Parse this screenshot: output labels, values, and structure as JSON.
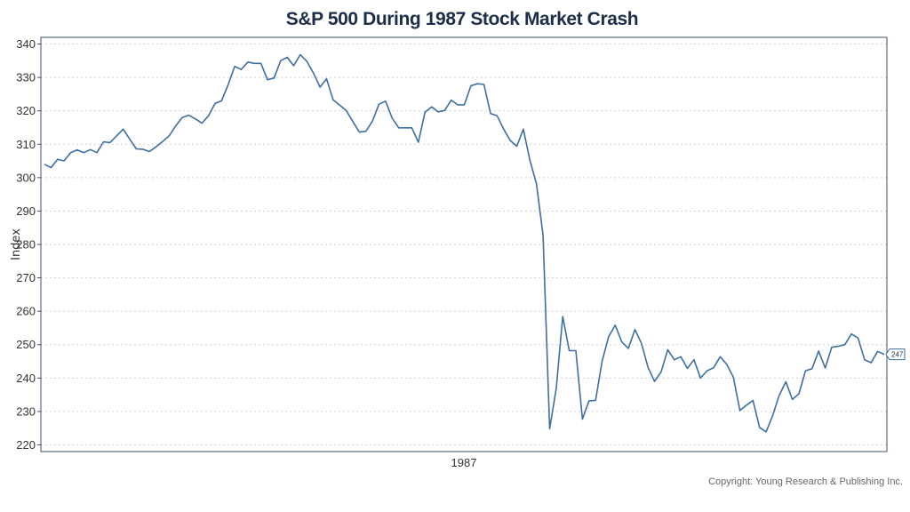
{
  "chart_data": {
    "type": "line",
    "title": "S&P 500 During 1987 Stock Market Crash",
    "xlabel": "1987",
    "ylabel": "Index",
    "ylim": [
      218,
      342
    ],
    "yticks": [
      220,
      230,
      240,
      250,
      260,
      270,
      280,
      290,
      300,
      310,
      320,
      330,
      340
    ],
    "grid": "horizontal dotted",
    "line_color": "#3d6fa3",
    "last_value_label": "247",
    "series": [
      {
        "values": [
          304,
          303,
          305.5,
          305,
          307.5,
          308.3,
          307.5,
          308.4,
          307.5,
          310.7,
          310.5,
          312.5,
          314.5,
          311.5,
          308.6,
          308.5,
          307.8,
          309.2,
          310.8,
          312.5,
          315.5,
          318,
          318.7,
          317.6,
          316.3,
          318.5,
          322.2,
          323,
          327.8,
          333.3,
          332.4,
          334.6,
          334.2,
          334.2,
          329.3,
          329.8,
          335,
          336,
          333.5,
          336.8,
          334.8,
          331.3,
          327.1,
          329.6,
          323.3,
          321.7,
          320.1,
          316.8,
          313.6,
          313.9,
          316.9,
          322,
          322.9,
          317.8,
          314.9,
          314.9,
          314.9,
          310.6,
          319.6,
          321.2,
          319.7,
          320.1,
          323.2,
          321.8,
          321.8,
          327.5,
          328.1,
          327.9,
          319.2,
          318.5,
          314.5,
          311.1,
          309.4,
          314.5,
          305.2,
          298.1,
          282.7,
          224.8,
          236.8,
          258.4,
          248.2,
          248.2,
          227.7,
          233.2,
          233.3,
          245,
          252.4,
          255.8,
          250.8,
          248.9,
          254.5,
          250.4,
          243.2,
          239,
          241.9,
          248.5,
          245.5,
          246.4,
          242.9,
          245.5,
          240,
          242.2,
          243.1,
          246.4,
          244.1,
          240.3,
          230.3,
          231.9,
          233.3,
          225.2,
          223.9,
          228.8,
          234.9,
          238.9,
          233.6,
          235.3,
          242.2,
          242.8,
          248.1,
          243,
          249.2,
          249.5,
          250,
          253.2,
          252,
          245.5,
          244.6,
          248,
          247.1
        ]
      }
    ]
  },
  "copyright": "Copyright: Young Research & Publishing Inc."
}
